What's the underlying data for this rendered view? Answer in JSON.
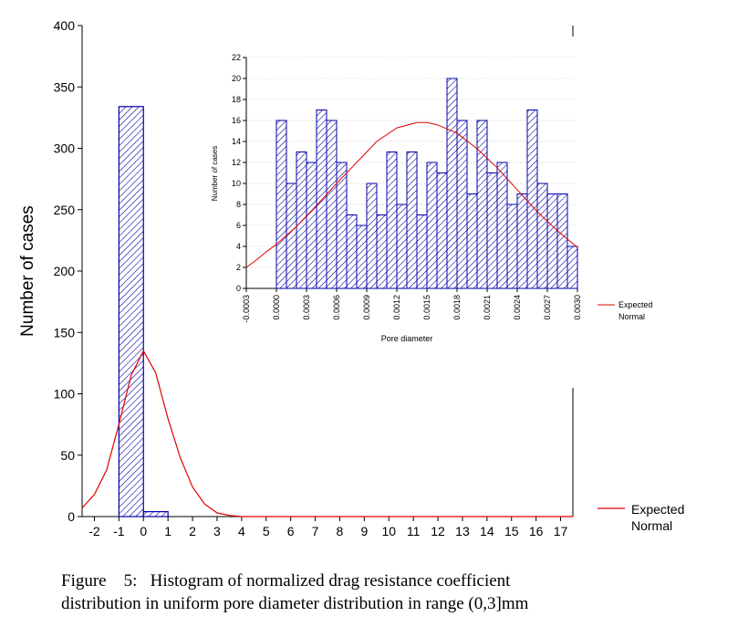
{
  "caption": {
    "line1": "Figure    5:   Histogram of normalized drag resistance coefficient",
    "line2": "distribution in uniform pore diameter distribution in range (0,3]mm"
  },
  "colors": {
    "bar_outline": "#0000aa",
    "bar_hatch": "#0000aa",
    "normal_curve": "#e00000",
    "grid": "#cfcfcf"
  },
  "chart_data": [
    {
      "type": "bar",
      "ylabel": "Number of cases",
      "xlabel": "",
      "bin_width": 1,
      "bins": [
        {
          "x0": -1,
          "x1": 0,
          "value": 334
        },
        {
          "x0": 0,
          "x1": 1,
          "value": 4
        }
      ],
      "x_ticks": [
        "-2",
        "-1",
        "0",
        "1",
        "2",
        "3",
        "4",
        "5",
        "6",
        "7",
        "8",
        "9",
        "10",
        "11",
        "12",
        "13",
        "14",
        "15",
        "16",
        "17"
      ],
      "y_ticks": [
        "0",
        "50",
        "100",
        "150",
        "200",
        "250",
        "300",
        "350",
        "400"
      ],
      "xlim": [
        -2.5,
        17.5
      ],
      "ylim": [
        0,
        400
      ],
      "grid": false,
      "legend": {
        "entries": [
          "Expected",
          "Normal"
        ],
        "placement": "bottom-right"
      },
      "normal_curve": {
        "x": [
          -2.5,
          -2,
          -1.5,
          -1,
          -0.5,
          0,
          0.5,
          1,
          1.5,
          2,
          2.5,
          3,
          3.5,
          4,
          5,
          6,
          8,
          10,
          12,
          14,
          17.5
        ],
        "y": [
          7,
          18,
          38,
          75,
          115,
          135,
          117,
          80,
          48,
          24,
          10,
          3,
          1,
          0,
          0,
          0,
          0,
          0,
          0,
          0,
          0
        ]
      }
    },
    {
      "type": "bar",
      "xlabel": "Pore diameter",
      "ylabel": "Number of cases",
      "bin_width": 0.0001,
      "bins_start": -0.0003,
      "values": [
        0,
        0,
        0,
        16,
        10,
        13,
        12,
        17,
        16,
        12,
        7,
        6,
        10,
        7,
        13,
        8,
        13,
        7,
        12,
        11,
        20,
        16,
        9,
        16,
        11,
        12,
        8,
        9,
        17,
        10,
        9,
        9,
        4
      ],
      "x_ticks": [
        "-0.0003",
        "0.0000",
        "0.0003",
        "0.0006",
        "0.0009",
        "0.0012",
        "0.0015",
        "0.0018",
        "0.0021",
        "0.0024",
        "0.0027",
        "0.0030"
      ],
      "y_ticks": [
        "0",
        "2",
        "4",
        "6",
        "8",
        "10",
        "12",
        "14",
        "16",
        "18",
        "20",
        "22"
      ],
      "xlim": [
        -0.0003,
        0.003
      ],
      "ylim": [
        0,
        22
      ],
      "grid": true,
      "legend": {
        "entries": [
          "Expected",
          "Normal"
        ],
        "placement": "right"
      },
      "normal_curve": {
        "x": [
          -0.0003,
          -0.0002,
          -0.0001,
          0.0,
          0.0002,
          0.0004,
          0.0006,
          0.0008,
          0.001,
          0.0012,
          0.0014,
          0.0015,
          0.0016,
          0.0018,
          0.002,
          0.0022,
          0.0024,
          0.0026,
          0.0028,
          0.003
        ],
        "y": [
          2.0,
          2.7,
          3.5,
          4.2,
          5.9,
          7.9,
          10.0,
          12.0,
          14.0,
          15.3,
          15.8,
          15.8,
          15.6,
          14.8,
          13.3,
          11.5,
          9.4,
          7.3,
          5.5,
          3.9
        ]
      }
    }
  ]
}
